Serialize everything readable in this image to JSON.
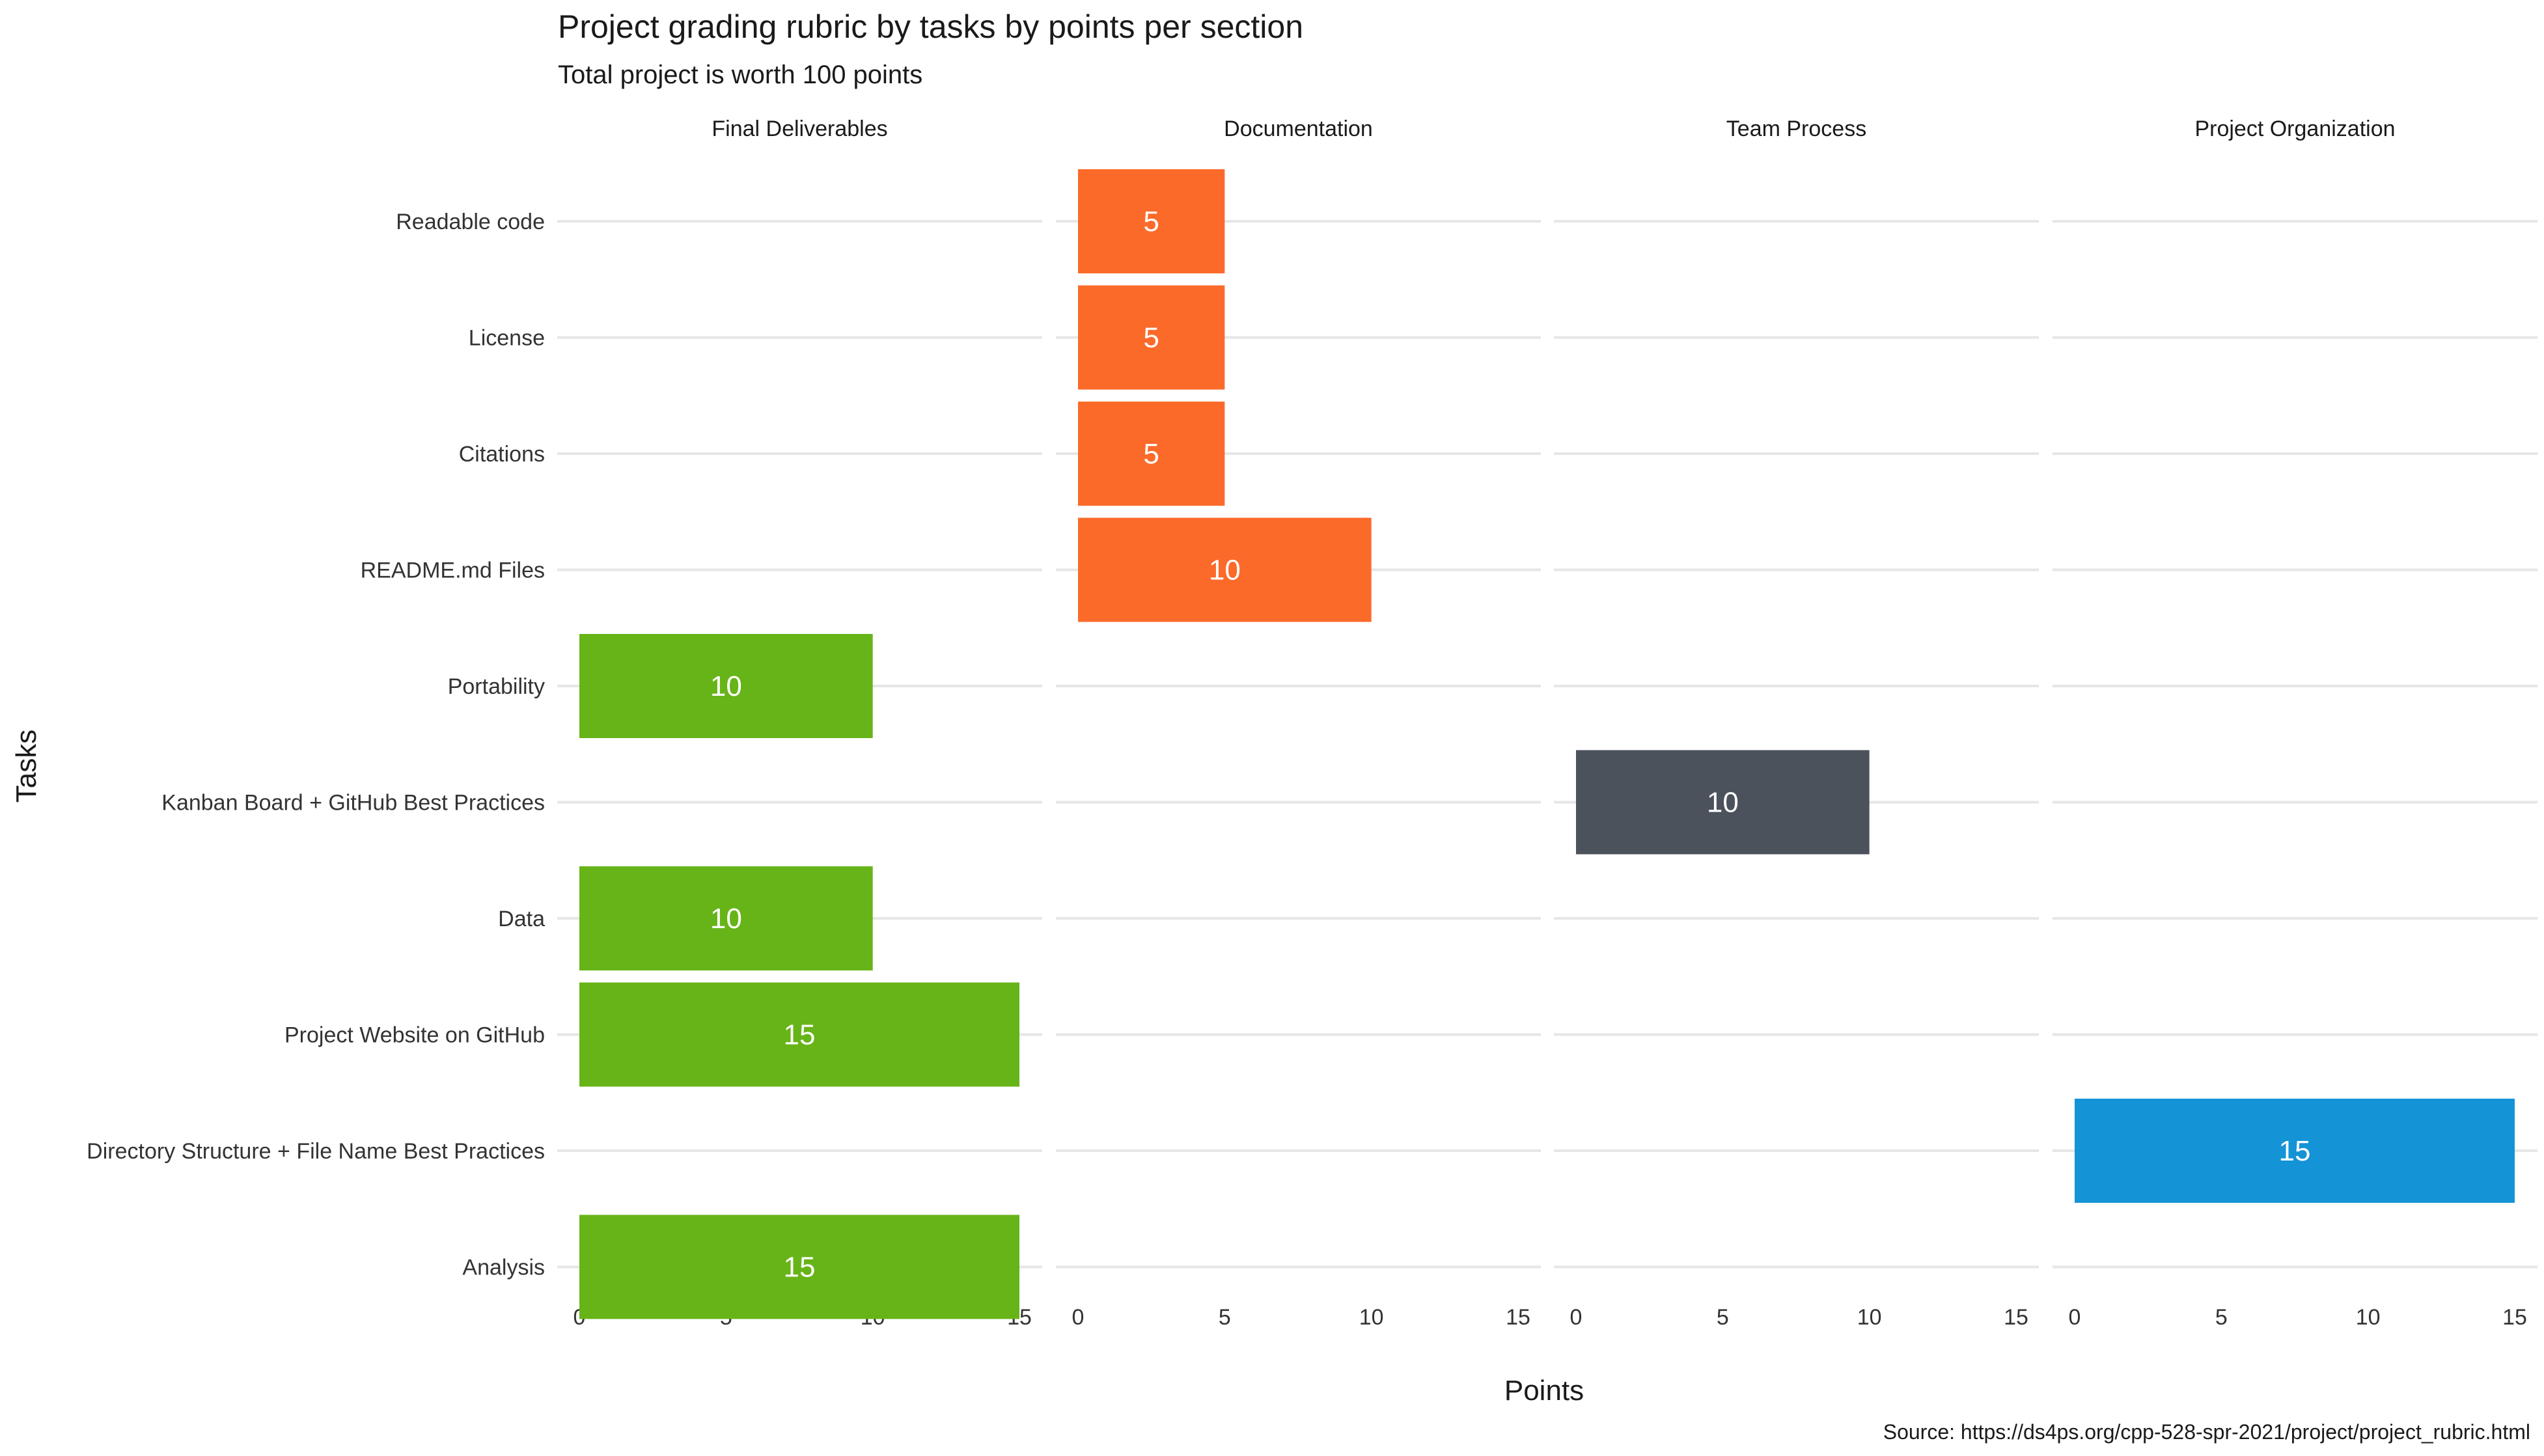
{
  "chart_data": {
    "type": "bar",
    "orientation": "horizontal",
    "title": "Project grading rubric by tasks by points per section",
    "subtitle": "Total project is worth 100 points",
    "xlabel": "Points",
    "ylabel": "Tasks",
    "caption": "Source: https://ds4ps.org/cpp-528-spr-2021/project/project_rubric.html",
    "xlim": [
      0,
      15
    ],
    "xticks": [
      0,
      5,
      10,
      15
    ],
    "grid": "horizontal major lines",
    "legend": "none",
    "facets": [
      {
        "name": "Final Deliverables",
        "color": "#67b418"
      },
      {
        "name": "Documentation",
        "color": "#fc6a2a"
      },
      {
        "name": "Team Process",
        "color": "#4b525c"
      },
      {
        "name": "Project Organization",
        "color": "#1493d6"
      }
    ],
    "categories": [
      "Readable code",
      "License",
      "Citations",
      "README.md Files",
      "Portability",
      "Kanban Board + GitHub Best Practices",
      "Data",
      "Project Website on GitHub",
      "Directory Structure + File Name Best Practices",
      "Analysis"
    ],
    "data": [
      {
        "task": "Readable code",
        "section": "Documentation",
        "points": 5
      },
      {
        "task": "License",
        "section": "Documentation",
        "points": 5
      },
      {
        "task": "Citations",
        "section": "Documentation",
        "points": 5
      },
      {
        "task": "README.md Files",
        "section": "Documentation",
        "points": 10
      },
      {
        "task": "Portability",
        "section": "Final Deliverables",
        "points": 10
      },
      {
        "task": "Kanban Board + GitHub Best Practices",
        "section": "Team Process",
        "points": 10
      },
      {
        "task": "Data",
        "section": "Final Deliverables",
        "points": 10
      },
      {
        "task": "Project Website on GitHub",
        "section": "Final Deliverables",
        "points": 15
      },
      {
        "task": "Directory Structure + File Name Best Practices",
        "section": "Project Organization",
        "points": 15
      },
      {
        "task": "Analysis",
        "section": "Final Deliverables",
        "points": 15
      }
    ]
  }
}
